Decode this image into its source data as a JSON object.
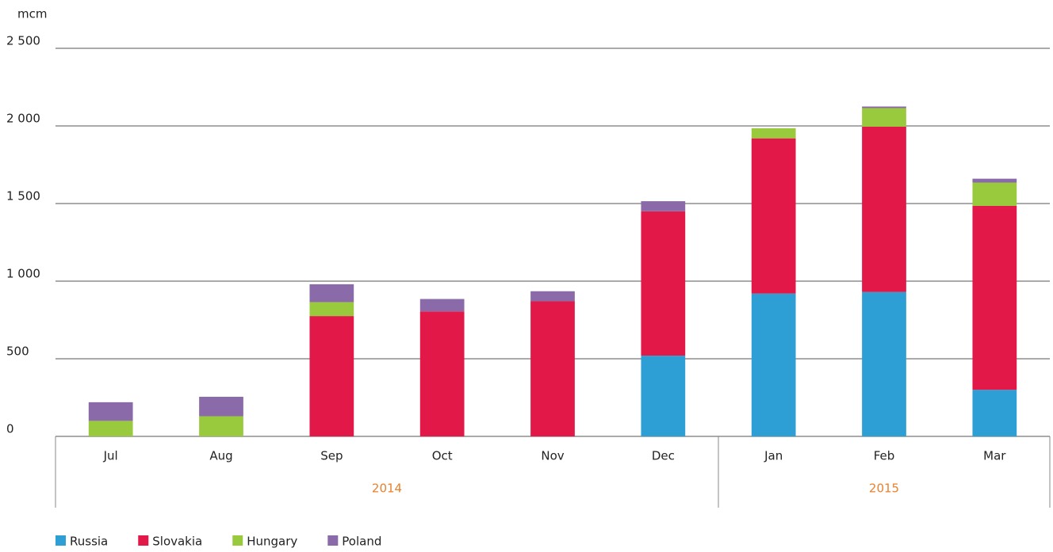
{
  "chart_data": {
    "type": "stacked-bar",
    "y_label": "mcm",
    "groups": [
      {
        "name": "2014",
        "categories": [
          "Jul",
          "Aug",
          "Sep",
          "Oct",
          "Nov",
          "Dec"
        ]
      },
      {
        "name": "2015",
        "categories": [
          "Jan",
          "Feb",
          "Mar"
        ]
      }
    ],
    "group_color": "#e8812e",
    "series": [
      {
        "name": "Russia",
        "color": "#2e9fd4",
        "values": [
          0,
          0,
          0,
          0,
          0,
          520,
          920,
          930,
          300
        ]
      },
      {
        "name": "Slovakia",
        "color": "#e11848",
        "values": [
          0,
          0,
          775,
          805,
          870,
          930,
          1000,
          1065,
          1185
        ]
      },
      {
        "name": "Hungary",
        "color": "#99c93c",
        "values": [
          100,
          130,
          90,
          0,
          0,
          0,
          65,
          120,
          150
        ]
      },
      {
        "name": "Poland",
        "color": "#8a6aa8",
        "values": [
          120,
          125,
          115,
          80,
          65,
          65,
          0,
          10,
          25
        ]
      }
    ],
    "ylim": [
      0,
      2500
    ],
    "yticks": [
      0,
      500,
      {
        "value": 1000,
        "label": "1 000"
      },
      {
        "value": 1500,
        "label": "1 500"
      },
      {
        "value": 2000,
        "label": "2 000"
      },
      {
        "value": 2500,
        "label": "2 500"
      }
    ],
    "grid": true,
    "legend": "bottom-left"
  }
}
